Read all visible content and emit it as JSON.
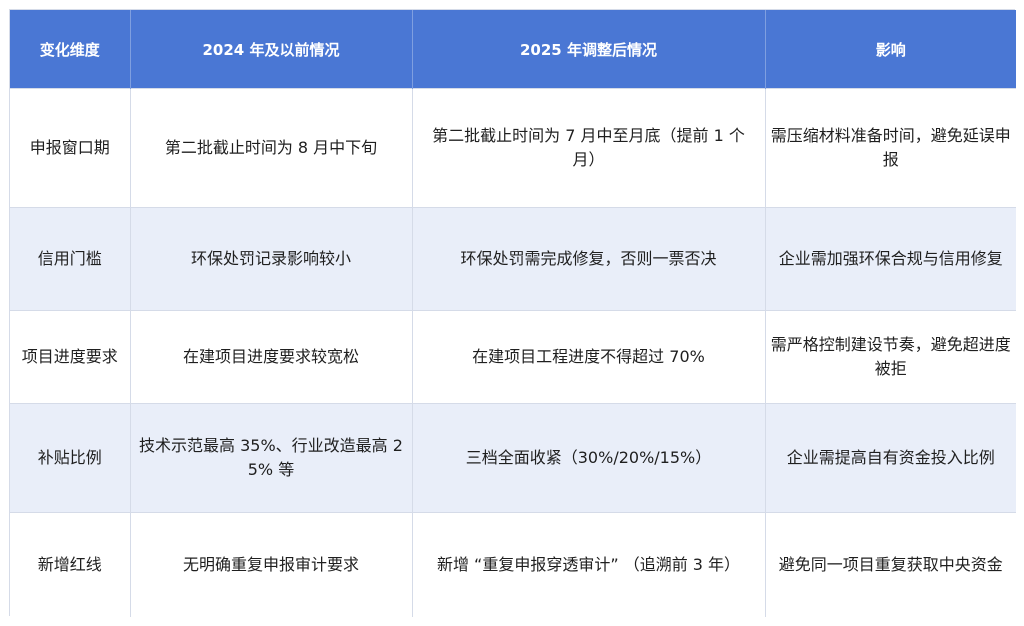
{
  "table": {
    "headers": [
      "变化维度",
      "2024 年及以前情况",
      "2025 年调整后情况",
      "影响"
    ],
    "rows": [
      [
        "申报窗口期",
        "第二批截止时间为 8 月中下旬",
        "第二批截止时间为 7 月中至月底（提前 1 个月）",
        "需压缩材料准备时间，避免延误申报"
      ],
      [
        "信用门槛",
        "环保处罚记录影响较小",
        "环保处罚需完成修复，否则一票否决",
        "企业需加强环保合规与信用修复"
      ],
      [
        "项目进度要求",
        "在建项目进度要求较宽松",
        "在建项目工程进度不得超过 70%",
        "需严格控制建设节奏，避免超进度被拒"
      ],
      [
        "补贴比例",
        "技术示范最高 35%、行业改造最高 25% 等",
        "三档全面收紧（30%/20%/15%）",
        "企业需提高自有资金投入比例"
      ],
      [
        "新增红线",
        "无明确重复申报审计要求",
        "新增 “重复申报穿透审计” （追溯前 3 年）",
        "避免同一项目重复获取中央资金"
      ]
    ]
  },
  "colors": {
    "header_bg": "#4a77d4",
    "header_text": "#ffffff",
    "stripe_bg": "#e9eef9",
    "border": "#d5dbe8"
  }
}
